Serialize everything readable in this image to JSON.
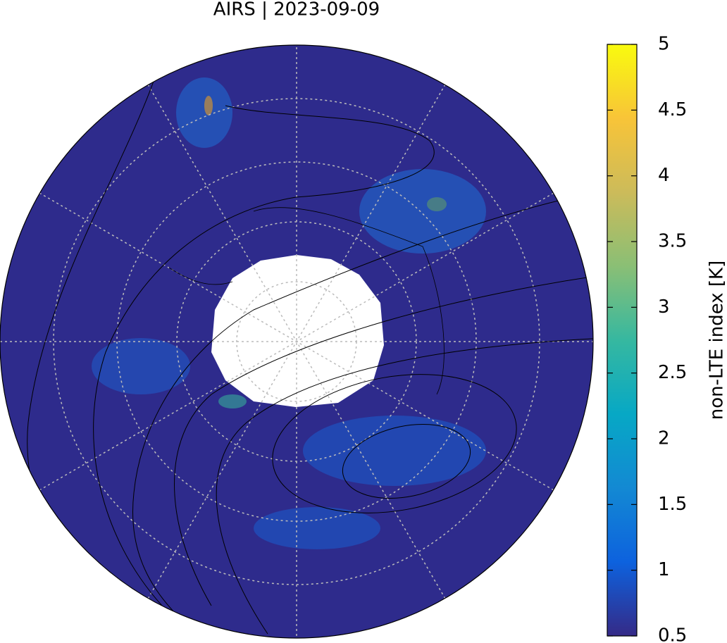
{
  "chart_data": {
    "type": "map",
    "title": "AIRS | 2023-09-09",
    "colorbar": {
      "label": "non-LTE index [K]",
      "lim": [
        0.5,
        5
      ],
      "ticks": [
        0.5,
        1,
        1.5,
        2,
        2.5,
        3,
        3.5,
        4,
        4.5,
        5
      ],
      "colors": [
        "#352a87",
        "#0d62de",
        "#1389d3",
        "#07a8c5",
        "#36b8a0",
        "#8abf75",
        "#ccbb5a",
        "#f8c438",
        "#f9fb0e"
      ]
    }
  }
}
